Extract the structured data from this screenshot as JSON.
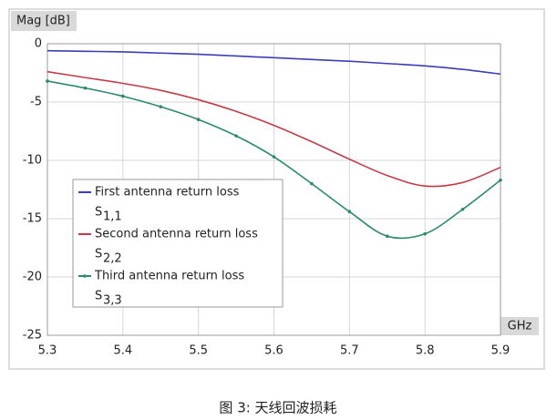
{
  "chart_data": {
    "type": "line",
    "y_label": "Mag [dB]",
    "x_label": "GHz",
    "x": [
      5.3,
      5.35,
      5.4,
      5.45,
      5.5,
      5.55,
      5.6,
      5.65,
      5.7,
      5.75,
      5.8,
      5.85,
      5.9
    ],
    "series": [
      {
        "name": "First antenna return loss",
        "symbol": "S",
        "subscript": "1,1",
        "color": "#3a3db5",
        "markers": false,
        "values": [
          -0.6,
          -0.65,
          -0.7,
          -0.8,
          -0.9,
          -1.05,
          -1.2,
          -1.35,
          -1.5,
          -1.7,
          -1.9,
          -2.2,
          -2.6
        ]
      },
      {
        "name": "Second antenna return loss",
        "symbol": "S",
        "subscript": "2,2",
        "color": "#c23b48",
        "markers": false,
        "values": [
          -2.4,
          -2.9,
          -3.4,
          -4.0,
          -4.8,
          -5.8,
          -7.0,
          -8.4,
          -9.9,
          -11.3,
          -12.2,
          -11.9,
          -10.6
        ]
      },
      {
        "name": "Third antenna return loss",
        "symbol": "S",
        "subscript": "3,3",
        "color": "#2a8a6c",
        "markers": true,
        "values": [
          -3.2,
          -3.8,
          -4.5,
          -5.4,
          -6.5,
          -7.9,
          -9.7,
          -12.0,
          -14.4,
          -16.5,
          -16.3,
          -14.2,
          -11.7
        ]
      }
    ],
    "xlim": [
      5.3,
      5.9
    ],
    "xticks": [
      5.3,
      5.4,
      5.5,
      5.6,
      5.7,
      5.8,
      5.9
    ],
    "ylim": [
      -25,
      0
    ],
    "yticks": [
      0,
      -5,
      -10,
      -15,
      -20,
      -25
    ],
    "grid": true,
    "legend": "bottom-left"
  },
  "caption": "图 3: 天线回波损耗"
}
